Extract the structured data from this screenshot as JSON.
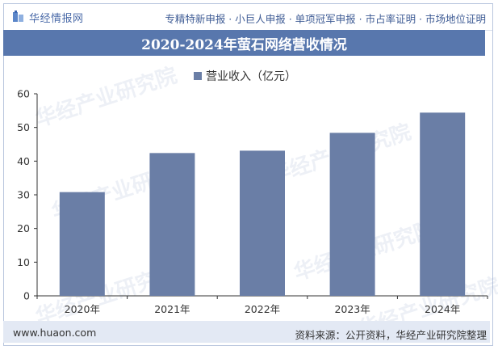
{
  "header": {
    "brand": "华经情报网",
    "tagline": "专精特新申报 · 小巨人申报 · 单项冠军申报 · 市占率证明 · 市场地位证明"
  },
  "chart_data": {
    "type": "bar",
    "title": "2020-2024年萤石网络营收情况",
    "categories": [
      "2020年",
      "2021年",
      "2022年",
      "2023年",
      "2024年"
    ],
    "series": [
      {
        "name": "营业收入（亿元）",
        "values": [
          30.8,
          42.4,
          43.1,
          48.4,
          54.4
        ]
      }
    ],
    "ylim": [
      0,
      60
    ],
    "yticks": [
      0,
      10,
      20,
      30,
      40,
      50,
      60
    ],
    "ytick_labels": [
      "0",
      "10",
      "20",
      "30",
      "40",
      "50",
      "60"
    ],
    "grid": false,
    "legend_position": "top-center",
    "bar_color": "#6a7ea6"
  },
  "footer": {
    "url": "www.huaon.com",
    "source": "资料来源：公开资料，华经产业研究院整理"
  },
  "colors": {
    "title_bar": "#5877ad",
    "footer_bar": "#e3e9f4",
    "accent_text": "#3f5c95"
  },
  "watermarks": [
    "华经产业研究院",
    "www.huaon.com"
  ]
}
